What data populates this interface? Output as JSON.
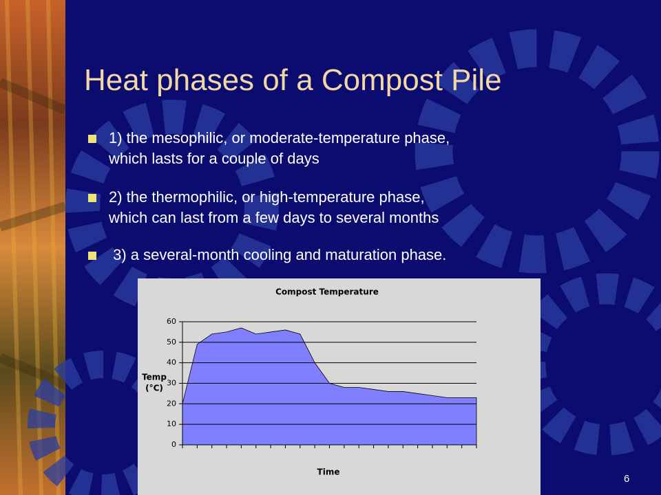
{
  "slide": {
    "title": "Heat phases of a Compost Pile",
    "bullets": [
      [
        "1) the mesophilic, or moderate-temperature phase,",
        "which lasts for a couple of days"
      ],
      [
        "2) the thermophilic, or high-temperature phase,",
        "which can last from a few days to several months"
      ],
      [
        " 3) a several-month cooling and maturation phase."
      ]
    ],
    "page_number": "6"
  },
  "chart_data": {
    "type": "area",
    "title": "Compost Temperature",
    "ylabel": [
      "Temp",
      "(°C)"
    ],
    "xlabel": "Time",
    "categories": [
      null,
      null,
      null,
      null,
      null,
      null,
      null,
      null,
      null,
      null,
      null,
      null,
      null,
      null,
      null,
      null,
      null,
      null,
      null,
      null,
      null
    ],
    "values": [
      20,
      49,
      54,
      55,
      57,
      54,
      55,
      56,
      54,
      40,
      30,
      28,
      28,
      27,
      26,
      26,
      25,
      24,
      23,
      23,
      23
    ],
    "color": "#8080ff",
    "ylim": [
      0,
      60
    ],
    "yticks": [
      0,
      10,
      20,
      30,
      40,
      50,
      60
    ],
    "grid": true
  }
}
